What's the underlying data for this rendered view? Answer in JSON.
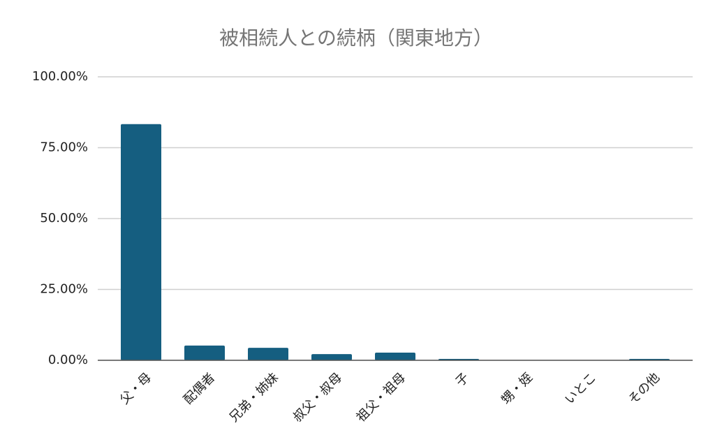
{
  "chart_data": {
    "type": "bar",
    "title": "被相続人との続柄（関東地方）",
    "categories": [
      "父・母",
      "配偶者",
      "兄弟・姉妹",
      "叔父・叔母",
      "祖父・祖母",
      "子",
      "甥・姪",
      "いとこ",
      "その他"
    ],
    "values": [
      83.3,
      5.2,
      4.4,
      2.2,
      2.7,
      0.5,
      0,
      0,
      0.5
    ],
    "color": "#155e80",
    "ylim": [
      0,
      100
    ],
    "yticks": [
      {
        "value": 0,
        "label": "0.00%"
      },
      {
        "value": 25,
        "label": "25.00%"
      },
      {
        "value": 50,
        "label": "50.00%"
      },
      {
        "value": 75,
        "label": "75.00%"
      },
      {
        "value": 100,
        "label": "100.00%"
      }
    ],
    "grid": true
  }
}
